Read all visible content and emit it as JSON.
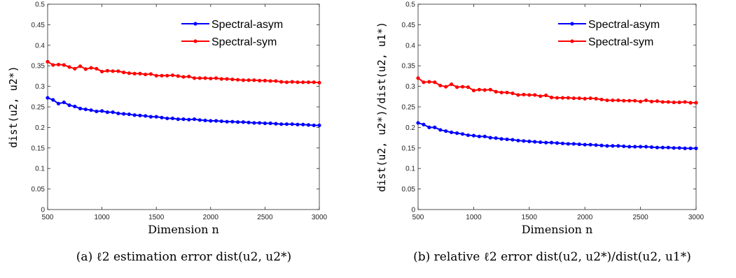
{
  "chart_data": [
    {
      "type": "line",
      "xlabel": "Dimension n",
      "ylabel": "dist(u2, u2*)",
      "caption": "(a) ℓ2 estimation error dist(u2, u2*)",
      "xlim": [
        500,
        3000
      ],
      "ylim": [
        0,
        0.5
      ],
      "xticks": [
        "500",
        "1000",
        "1500",
        "2000",
        "2500",
        "3000"
      ],
      "yticks": [
        "0",
        "0.05",
        "0.1",
        "0.15",
        "0.2",
        "0.25",
        "0.3",
        "0.35",
        "0.4",
        "0.45",
        "0.5"
      ],
      "grid": false,
      "legend_position": "top-right",
      "x": [
        500,
        550,
        600,
        650,
        700,
        750,
        800,
        850,
        900,
        950,
        1000,
        1050,
        1100,
        1150,
        1200,
        1250,
        1300,
        1350,
        1400,
        1450,
        1500,
        1550,
        1600,
        1650,
        1700,
        1750,
        1800,
        1850,
        1900,
        1950,
        2000,
        2050,
        2100,
        2150,
        2200,
        2250,
        2300,
        2350,
        2400,
        2450,
        2500,
        2550,
        2600,
        2650,
        2700,
        2750,
        2800,
        2850,
        2900,
        2950,
        3000
      ],
      "series": [
        {
          "name": "Spectral-asym",
          "color": "#0000ff",
          "values": [
            0.272,
            0.267,
            0.258,
            0.261,
            0.254,
            0.251,
            0.246,
            0.244,
            0.242,
            0.239,
            0.24,
            0.237,
            0.237,
            0.234,
            0.233,
            0.232,
            0.23,
            0.229,
            0.228,
            0.226,
            0.226,
            0.224,
            0.222,
            0.222,
            0.22,
            0.22,
            0.219,
            0.22,
            0.218,
            0.217,
            0.216,
            0.216,
            0.215,
            0.214,
            0.214,
            0.213,
            0.213,
            0.212,
            0.211,
            0.211,
            0.21,
            0.21,
            0.209,
            0.208,
            0.208,
            0.208,
            0.207,
            0.207,
            0.206,
            0.205,
            0.205
          ]
        },
        {
          "name": "Spectral-sym",
          "color": "#ff0000",
          "values": [
            0.36,
            0.352,
            0.353,
            0.352,
            0.347,
            0.343,
            0.349,
            0.342,
            0.345,
            0.343,
            0.336,
            0.338,
            0.337,
            0.337,
            0.334,
            0.332,
            0.331,
            0.331,
            0.329,
            0.33,
            0.326,
            0.326,
            0.326,
            0.327,
            0.325,
            0.323,
            0.324,
            0.32,
            0.32,
            0.32,
            0.319,
            0.32,
            0.318,
            0.318,
            0.317,
            0.316,
            0.315,
            0.315,
            0.315,
            0.314,
            0.314,
            0.313,
            0.313,
            0.311,
            0.31,
            0.311,
            0.31,
            0.31,
            0.31,
            0.31,
            0.309
          ]
        }
      ]
    },
    {
      "type": "line",
      "xlabel": "Dimension n",
      "ylabel": "dist(u2, u2*)/dist(u2, u1*)",
      "caption": "(b) relative ℓ2 error dist(u2, u2*)/dist(u2, u1*)",
      "xlim": [
        500,
        3000
      ],
      "ylim": [
        0,
        0.5
      ],
      "xticks": [
        "500",
        "1000",
        "1500",
        "2000",
        "2500",
        "3000"
      ],
      "yticks": [
        "0",
        "0.05",
        "0.1",
        "0.15",
        "0.2",
        "0.25",
        "0.3",
        "0.35",
        "0.4",
        "0.45",
        "0.5"
      ],
      "grid": false,
      "legend_position": "top-right",
      "x": [
        500,
        550,
        600,
        650,
        700,
        750,
        800,
        850,
        900,
        950,
        1000,
        1050,
        1100,
        1150,
        1200,
        1250,
        1300,
        1350,
        1400,
        1450,
        1500,
        1550,
        1600,
        1650,
        1700,
        1750,
        1800,
        1850,
        1900,
        1950,
        2000,
        2050,
        2100,
        2150,
        2200,
        2250,
        2300,
        2350,
        2400,
        2450,
        2500,
        2550,
        2600,
        2650,
        2700,
        2750,
        2800,
        2850,
        2900,
        2950,
        3000
      ],
      "series": [
        {
          "name": "Spectral-asym",
          "color": "#0000ff",
          "values": [
            0.211,
            0.207,
            0.2,
            0.2,
            0.194,
            0.191,
            0.188,
            0.186,
            0.184,
            0.181,
            0.18,
            0.178,
            0.178,
            0.175,
            0.174,
            0.172,
            0.171,
            0.17,
            0.168,
            0.167,
            0.166,
            0.165,
            0.164,
            0.163,
            0.163,
            0.162,
            0.161,
            0.16,
            0.16,
            0.159,
            0.158,
            0.158,
            0.157,
            0.156,
            0.155,
            0.155,
            0.155,
            0.154,
            0.153,
            0.153,
            0.153,
            0.153,
            0.152,
            0.151,
            0.151,
            0.151,
            0.15,
            0.15,
            0.149,
            0.149,
            0.149
          ]
        },
        {
          "name": "Spectral-sym",
          "color": "#ff0000",
          "values": [
            0.32,
            0.31,
            0.311,
            0.31,
            0.302,
            0.299,
            0.305,
            0.298,
            0.299,
            0.298,
            0.29,
            0.292,
            0.291,
            0.292,
            0.287,
            0.285,
            0.285,
            0.283,
            0.279,
            0.28,
            0.279,
            0.279,
            0.276,
            0.278,
            0.273,
            0.272,
            0.272,
            0.272,
            0.271,
            0.271,
            0.27,
            0.271,
            0.27,
            0.268,
            0.266,
            0.266,
            0.266,
            0.265,
            0.265,
            0.265,
            0.263,
            0.266,
            0.263,
            0.264,
            0.262,
            0.262,
            0.261,
            0.261,
            0.262,
            0.26,
            0.26
          ]
        }
      ]
    }
  ]
}
